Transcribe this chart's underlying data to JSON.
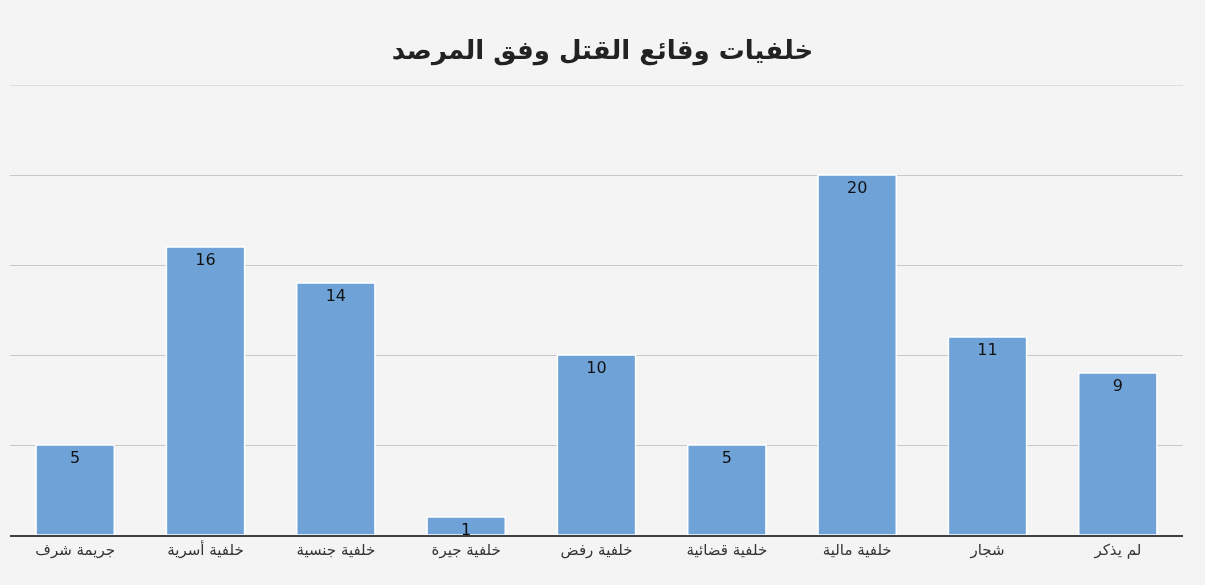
{
  "chart_data": {
    "type": "bar",
    "title": "خلفيات وقائع القتل وفق المرصد",
    "categories": [
      "جريمة شرف",
      "خلفية أسرية",
      "خلفية جنسية",
      "خلفية جيرة",
      "خلفية رفض",
      "خلفية قضائية",
      "خلفية مالية",
      "شجار",
      "لم يذكر"
    ],
    "values": [
      5,
      16,
      14,
      1,
      10,
      5,
      20,
      11,
      9
    ],
    "color": "#6fa3d8",
    "ylim": [
      0,
      25
    ],
    "yticks": [
      {
        "value": 0,
        "label": null
      },
      {
        "value": 5,
        "label": null
      },
      {
        "value": 10,
        "label": null
      },
      {
        "value": 15,
        "label": null
      },
      {
        "value": 20,
        "label": null
      },
      {
        "value": 25,
        "label": null
      }
    ],
    "tick_labels": "x",
    "grid": "y",
    "data_labels": true,
    "legend": false
  }
}
